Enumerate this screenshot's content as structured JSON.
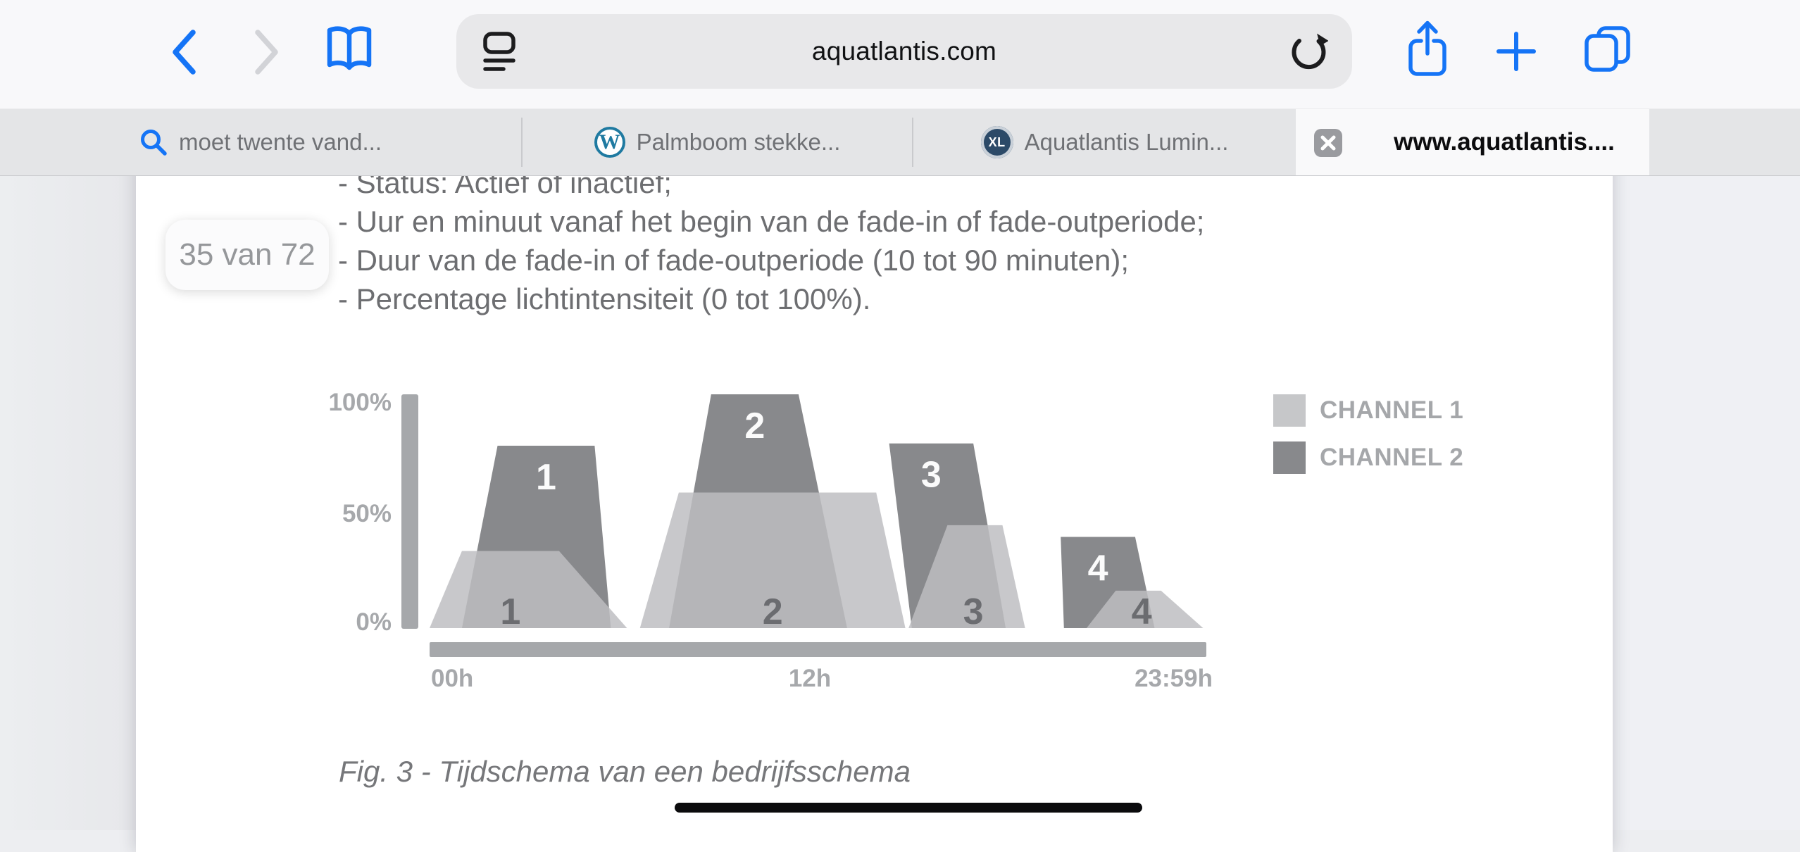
{
  "browser": {
    "url": "aquatlantis.com",
    "tabs": [
      {
        "label": "moet twente vand..."
      },
      {
        "label": "Palmboom stekke...",
        "favicon_letter": "W"
      },
      {
        "label": "Aquatlantis Lumin...",
        "favicon_letter": "XL"
      },
      {
        "label": "www.aquatlantis...."
      }
    ]
  },
  "pdf": {
    "page_indicator": "35 van 72",
    "bullet_lines": [
      "- Status: Actief of inactief;",
      "- Uur en minuut vanaf het begin van de fade-in of fade-outperiode;",
      "- Duur van de fade-in of fade-outperiode (10 tot 90 minuten);",
      "- Percentage lichtintensiteit (0 tot 100%)."
    ],
    "caption": "Fig. 3 - Tijdschema van een bedrijfsschema"
  },
  "chart_data": {
    "type": "area",
    "description": "Light intensity schedule: trapezoid fade-in/fade-out periods per channel over 24h",
    "axis_color": "#a6a8ab",
    "x_axis": {
      "labels": [
        "00h",
        "12h",
        "23:59h"
      ],
      "range_hours": [
        0,
        24
      ]
    },
    "y_axis": {
      "labels": [
        "100%",
        "50%",
        "0%"
      ],
      "range_pct": [
        0,
        100
      ]
    },
    "legend": [
      {
        "name": "CHANNEL 1",
        "color": "#c6c7c9"
      },
      {
        "name": "CHANNEL 2",
        "color": "#88898c"
      }
    ],
    "series": [
      {
        "name": "CHANNEL 1",
        "fill": "rgba(189,190,193,0.84)",
        "label_color": "#6b6c70",
        "label_pos": "bottom",
        "shapes": [
          {
            "label": "1",
            "base_h": [
              0.0,
              6.1
            ],
            "top_h": [
              1.0,
              4.0
            ],
            "peak_pct": 33,
            "label_h": 2.5
          },
          {
            "label": "2",
            "base_h": [
              6.5,
              14.7
            ],
            "top_h": [
              7.7,
              13.8
            ],
            "peak_pct": 58,
            "label_h": 10.6
          },
          {
            "label": "3",
            "base_h": [
              14.8,
              18.4
            ],
            "top_h": [
              16.0,
              17.7
            ],
            "peak_pct": 44,
            "label_h": 16.8
          },
          {
            "label": "4",
            "base_h": [
              20.3,
              23.9
            ],
            "top_h": [
              21.2,
              22.6
            ],
            "peak_pct": 16,
            "label_h": 22.0
          }
        ]
      },
      {
        "name": "CHANNEL 2",
        "fill": "#88898c",
        "label_color": "#fbfbfb",
        "label_pos": "top",
        "shapes": [
          {
            "label": "1",
            "base_h": [
              1.0,
              5.6
            ],
            "top_h": [
              2.1,
              5.1
            ],
            "peak_pct": 78
          },
          {
            "label": "2",
            "base_h": [
              7.4,
              12.9
            ],
            "top_h": [
              8.7,
              11.4
            ],
            "peak_pct": 100
          },
          {
            "label": "3",
            "base_h": [
              14.9,
              17.8
            ],
            "top_h": [
              14.2,
              16.8
            ],
            "peak_pct": 79
          },
          {
            "label": "4",
            "base_h": [
              19.6,
              22.4
            ],
            "top_h": [
              19.5,
              21.8
            ],
            "peak_pct": 39
          }
        ]
      }
    ]
  }
}
